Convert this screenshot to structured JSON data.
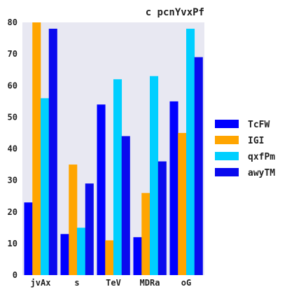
{
  "chart_data": {
    "type": "bar",
    "title": "c pcnYvxPf",
    "xlabel": "",
    "ylabel": "",
    "categories": [
      "jvAx",
      "s",
      "TeV",
      "MDRa",
      "oG"
    ],
    "series": [
      {
        "name": "TcFW",
        "color": "#0000ff",
        "values": [
          23,
          13,
          54,
          12,
          55
        ]
      },
      {
        "name": "IGI",
        "color": "#ffa500",
        "values": [
          80,
          35,
          11,
          26,
          45
        ]
      },
      {
        "name": "qxfPm",
        "color": "#00cfff",
        "values": [
          56,
          15,
          62,
          63,
          78
        ]
      },
      {
        "name": "awyTM",
        "color": "#0a0aee",
        "values": [
          78,
          29,
          44,
          36,
          69
        ]
      }
    ],
    "ylim": [
      0,
      80
    ],
    "yticks": [
      "0",
      "10",
      "20",
      "30",
      "40",
      "50",
      "60",
      "70",
      "80"
    ],
    "grid": false,
    "legend_position": "right",
    "plot_background": "#e8e8f2"
  }
}
